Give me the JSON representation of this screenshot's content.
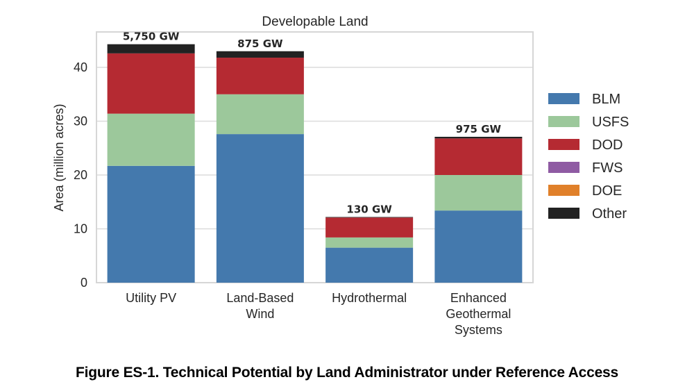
{
  "chart_data": {
    "type": "bar",
    "stacked": true,
    "title": "Developable Land",
    "xlabel": "",
    "ylabel": "Area (million acres)",
    "ylim": [
      0,
      45
    ],
    "yticks": [
      0,
      10,
      20,
      30,
      40
    ],
    "grid": true,
    "legend_position": "right",
    "categories": [
      {
        "label": [
          "Utility PV"
        ],
        "total_label": "5,750 GW"
      },
      {
        "label": [
          "Land-Based",
          "Wind"
        ],
        "total_label": "875 GW"
      },
      {
        "label": [
          "Hydrothermal"
        ],
        "total_label": "130 GW"
      },
      {
        "label": [
          "Enhanced",
          "Geothermal",
          "Systems"
        ],
        "total_label": "975 GW"
      }
    ],
    "series": [
      {
        "name": "BLM",
        "color": "#4479ad",
        "values": [
          21.7,
          27.6,
          6.5,
          13.4
        ]
      },
      {
        "name": "USFS",
        "color": "#9cc89b",
        "values": [
          9.7,
          7.4,
          1.9,
          6.6
        ]
      },
      {
        "name": "DOD",
        "color": "#b52a32",
        "values": [
          11.2,
          6.8,
          3.7,
          6.8
        ]
      },
      {
        "name": "FWS",
        "color": "#8f5ba3",
        "values": [
          0,
          0,
          0,
          0
        ]
      },
      {
        "name": "DOE",
        "color": "#e0802a",
        "values": [
          0,
          0,
          0,
          0
        ]
      },
      {
        "name": "Other",
        "color": "#222222",
        "values": [
          1.7,
          1.2,
          0.1,
          0.3
        ]
      }
    ]
  },
  "caption": "Figure ES-1. Technical Potential by Land Administrator under Reference Access"
}
